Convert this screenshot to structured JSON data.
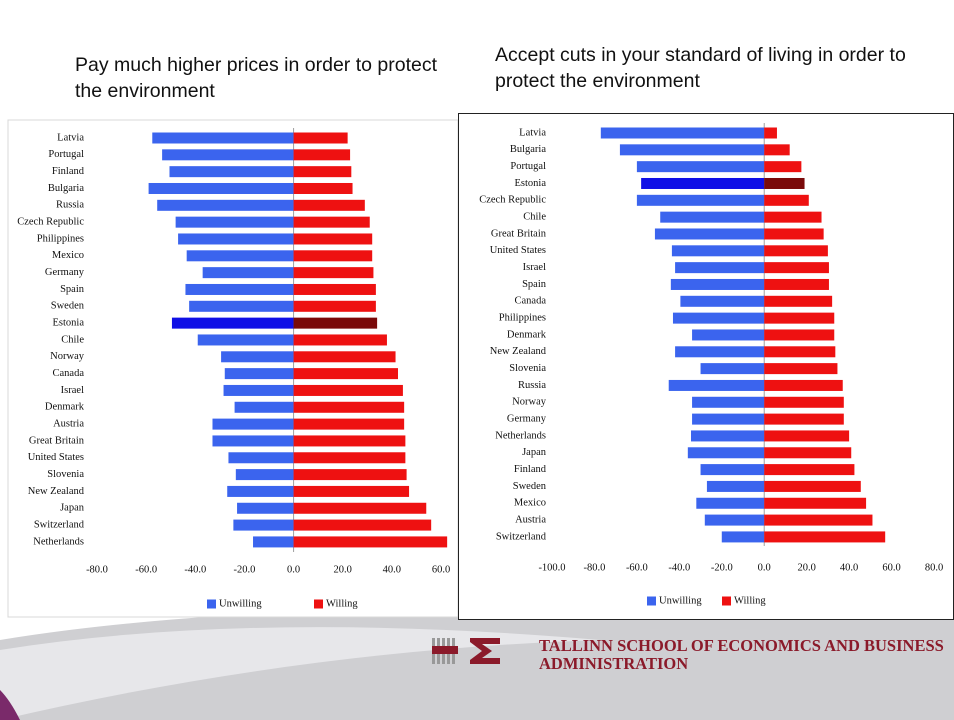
{
  "chart_data": [
    {
      "type": "bar",
      "orientation": "horizontal",
      "title": "Pay much higher prices in order to protect the environment",
      "categories": [
        "Latvia",
        "Portugal",
        "Finland",
        "Bulgaria",
        "Russia",
        "Czech Republic",
        "Philippines",
        "Mexico",
        "Germany",
        "Spain",
        "Sweden",
        "Estonia",
        "Chile",
        "Norway",
        "Canada",
        "Israel",
        "Denmark",
        "Austria",
        "Great Britain",
        "United States",
        "Slovenia",
        "New Zealand",
        "Japan",
        "Switzerland",
        "Netherlands"
      ],
      "series": [
        {
          "name": "Unwilling",
          "color": "#3b64ee",
          "highlight_color": "#1010e6",
          "values": [
            -57.5,
            -53.5,
            -50.5,
            -59,
            -55.5,
            -48,
            -47,
            -43.5,
            -37,
            -44,
            -42.5,
            -49.5,
            -39,
            -29.5,
            -28,
            -28.5,
            -24,
            -33,
            -33,
            -26.5,
            -23.5,
            -27,
            -23,
            -24.5,
            -16.5
          ]
        },
        {
          "name": "Willing",
          "color": "#ee1111",
          "highlight_color": "#7a0a0a",
          "values": [
            22,
            23,
            23.5,
            24,
            29,
            31,
            32,
            32,
            32.5,
            33.5,
            33.5,
            34,
            38,
            41.5,
            42.5,
            44.5,
            45,
            45,
            45.5,
            45.5,
            46,
            47,
            54,
            56,
            62.5
          ]
        }
      ],
      "highlight": "Estonia",
      "xlim": [
        -80,
        60
      ],
      "xticks": [
        {
          "value": -80,
          "label": "-80.0"
        },
        {
          "value": -60,
          "label": "-60.0"
        },
        {
          "value": -40,
          "label": "-40.0"
        },
        {
          "value": -20,
          "label": "-20.0"
        },
        {
          "value": 0,
          "label": "0.0"
        },
        {
          "value": 20,
          "label": "20.0"
        },
        {
          "value": 40,
          "label": "40.0"
        },
        {
          "value": 60,
          "label": "60.0"
        }
      ],
      "legend": "bottom"
    },
    {
      "type": "bar",
      "orientation": "horizontal",
      "title": "Accept cuts in your standard of living in order to protect the environment",
      "categories": [
        "Latvia",
        "Bulgaria",
        "Portugal",
        "Estonia",
        "Czech Republic",
        "Chile",
        "Great Britain",
        "United States",
        "Israel",
        "Spain",
        "Canada",
        "Philippines",
        "Denmark",
        "New Zealand",
        "Slovenia",
        "Russia",
        "Norway",
        "Germany",
        "Netherlands",
        "Japan",
        "Finland",
        "Sweden",
        "Mexico",
        "Austria",
        "Switzerland"
      ],
      "series": [
        {
          "name": "Unwilling",
          "color": "#3b64ee",
          "highlight_color": "#1010e6",
          "values": [
            -77,
            -68,
            -60,
            -58,
            -60,
            -49,
            -51.5,
            -43.5,
            -42,
            -44,
            -39.5,
            -43,
            -34,
            -42,
            -30,
            -45,
            -34,
            -34,
            -34.5,
            -36,
            -30,
            -27,
            -32,
            -28,
            -20
          ]
        },
        {
          "name": "Willing",
          "color": "#ee1111",
          "highlight_color": "#7a0a0a",
          "values": [
            6,
            12,
            17.5,
            19,
            21,
            27,
            28,
            30,
            30.5,
            30.5,
            32,
            33,
            33,
            33.5,
            34.5,
            37,
            37.5,
            37.5,
            40,
            41,
            42.5,
            45.5,
            48,
            51,
            57
          ]
        }
      ],
      "highlight": "Estonia",
      "xlim": [
        -100,
        80
      ],
      "xticks": [
        {
          "value": -100,
          "label": "-100.0"
        },
        {
          "value": -80,
          "label": "-80.0"
        },
        {
          "value": -60,
          "label": "-60.0"
        },
        {
          "value": -40,
          "label": "-40.0"
        },
        {
          "value": -20,
          "label": "-20.0"
        },
        {
          "value": 0,
          "label": "0.0"
        },
        {
          "value": 20,
          "label": "20.0"
        },
        {
          "value": 40,
          "label": "40.0"
        },
        {
          "value": 60,
          "label": "60.0"
        },
        {
          "value": 80,
          "label": "80.0"
        }
      ],
      "legend": "bottom"
    }
  ],
  "footer": {
    "logo_text": "TALLINN SCHOOL OF ECONOMICS AND BUSINESS ADMINISTRATION"
  }
}
